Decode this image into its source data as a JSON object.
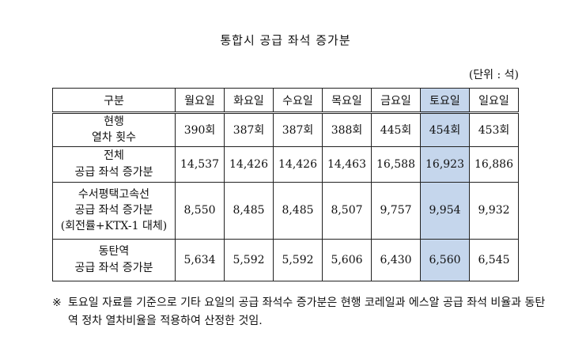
{
  "title": "통합시 공급 좌석 증가분",
  "unit": "(단위 : 석)",
  "table": {
    "corner": "구분",
    "days": [
      "월요일",
      "화요일",
      "수요일",
      "목요일",
      "금요일",
      "토요일",
      "일요일"
    ],
    "highlight_color": "#c5d6ec",
    "rows": [
      {
        "label": [
          "현행",
          "열차 횟수"
        ],
        "values": [
          "390회",
          "387회",
          "387회",
          "388회",
          "445회",
          "454회",
          "453회"
        ]
      },
      {
        "label": [
          "전체",
          "공급 좌석 증가분"
        ],
        "values": [
          "14,537",
          "14,426",
          "14,426",
          "14,463",
          "16,588",
          "16,923",
          "16,886"
        ]
      },
      {
        "label": [
          "수서평택고속선",
          "공급 좌석 증가분",
          "(회전률+KTX-1 대체)"
        ],
        "values": [
          "8,550",
          "8,485",
          "8,485",
          "8,507",
          "9,757",
          "9,954",
          "9,932"
        ]
      },
      {
        "label": [
          "동탄역",
          "공급 좌석 증가분"
        ],
        "values": [
          "5,634",
          "5,592",
          "5,592",
          "5,606",
          "6,430",
          "6,560",
          "6,545"
        ]
      }
    ]
  },
  "note": {
    "mark": "※",
    "text": "토요일 자료를 기준으로 기타 요일의 공급 좌석수 증가분은 현행 코레일과 에스알 공급 좌석 비율과 동탄역 정차 열차비율을 적용하여 산정한 것임."
  }
}
